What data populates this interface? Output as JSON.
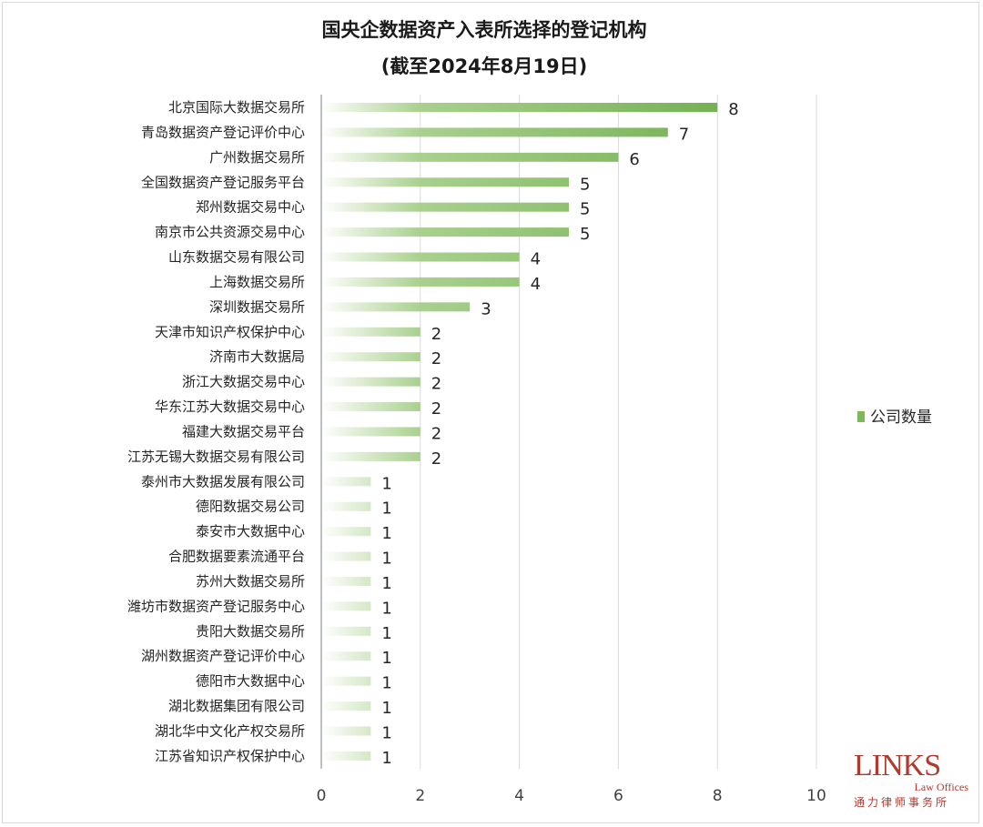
{
  "chart_data": {
    "type": "bar",
    "orientation": "horizontal",
    "title": "国央企数据资产入表所选择的登记机构",
    "subtitle": "(截至2024年8月19日)",
    "xlabel": "",
    "ylabel": "",
    "xlim": [
      0,
      10
    ],
    "xticks": [
      0,
      2,
      4,
      6,
      8,
      10
    ],
    "grid": true,
    "legend": {
      "position": "right",
      "entries": [
        "公司数量"
      ]
    },
    "categories": [
      "北京国际大数据交易所",
      "青岛数据资产登记评价中心",
      "广州数据交易所",
      "全国数据资产登记服务平台",
      "郑州数据交易中心",
      "南京市公共资源交易中心",
      "山东数据交易有限公司",
      "上海数据交易所",
      "深圳数据交易所",
      "天津市知识产权保护中心",
      "济南市大数据局",
      "浙江大数据交易中心",
      "华东江苏大数据交易中心",
      "福建大数据交易平台",
      "江苏无锡大数据交易有限公司",
      "泰州市大数据发展有限公司",
      "德阳数据交易公司",
      "泰安市大数据中心",
      "合肥数据要素流通平台",
      "苏州大数据交易所",
      "潍坊市数据资产登记服务中心",
      "贵阳大数据交易所",
      "湖州数据资产登记评价中心",
      "德阳市大数据中心",
      "湖北数据集团有限公司",
      "湖北华中文化产权交易所",
      "江苏省知识产权保护中心"
    ],
    "series": [
      {
        "name": "公司数量",
        "values": [
          8,
          7,
          6,
          5,
          5,
          5,
          4,
          4,
          3,
          2,
          2,
          2,
          2,
          2,
          2,
          1,
          1,
          1,
          1,
          1,
          1,
          1,
          1,
          1,
          1,
          1,
          1
        ],
        "color": "#6aab47"
      }
    ]
  },
  "logo": {
    "main": "LINKS",
    "sub": "Law Offices",
    "cn": "通力律师事务所"
  }
}
